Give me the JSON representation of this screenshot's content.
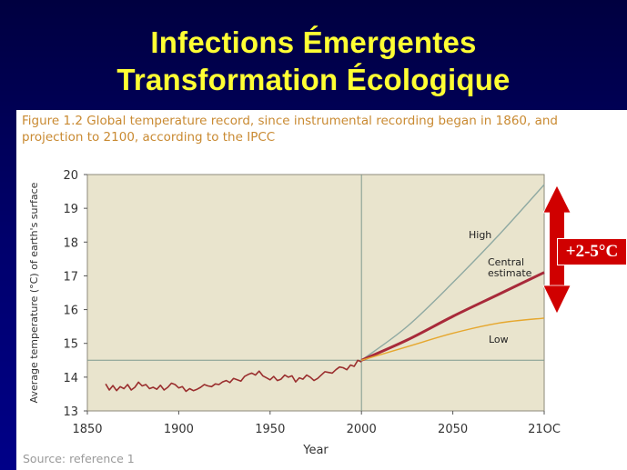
{
  "slide": {
    "title_line1": "Infections Émergentes",
    "title_line2": "Transformation Écologique",
    "callout": "+2-5°C"
  },
  "figure": {
    "caption": "Figure 1.2  Global temperature record, since instrumental recording began in 1860, and projection to 2100, according to the IPCC",
    "source": "Source: reference 1"
  },
  "colors": {
    "plot_bg": "#e9e4cd",
    "observed": "#9a2e2e",
    "high": "#8fa9a2",
    "central": "#a82a3a",
    "low": "#e6a72e",
    "callout": "#d00000",
    "title": "#ffff33"
  },
  "chart_data": {
    "type": "line",
    "xlabel": "Year",
    "ylabel": "Average temperature (°C) of earth's surface",
    "xlim": [
      1850,
      2100
    ],
    "ylim": [
      13,
      20
    ],
    "x_ticks": [
      1850,
      1900,
      1950,
      2000,
      2050,
      2100
    ],
    "x_tick_labels": [
      "1850",
      "1900",
      "1950",
      "2000",
      "2050",
      "21OC"
    ],
    "y_ticks": [
      13,
      14,
      15,
      16,
      17,
      18,
      19,
      20
    ],
    "reference_x": 2000,
    "reference_y": 14.5,
    "grid": false,
    "series": [
      {
        "x": [
          1860,
          1862,
          1864,
          1866,
          1868,
          1870,
          1872,
          1874,
          1876,
          1878,
          1880,
          1882,
          1884,
          1886,
          1888,
          1890,
          1892,
          1894,
          1896,
          1898,
          1900,
          1902,
          1904,
          1906,
          1908,
          1910,
          1912,
          1914,
          1916,
          1918,
          1920,
          1922,
          1924,
          1926,
          1928,
          1930,
          1932,
          1934,
          1936,
          1938,
          1940,
          1942,
          1944,
          1946,
          1948,
          1950,
          1952,
          1954,
          1956,
          1958,
          1960,
          1962,
          1964,
          1966,
          1968,
          1970,
          1972,
          1974,
          1976,
          1978,
          1980,
          1982,
          1984,
          1986,
          1988,
          1990,
          1992,
          1994,
          1996,
          1998,
          2000
        ],
        "y": [
          13.8,
          13.62,
          13.75,
          13.6,
          13.72,
          13.66,
          13.78,
          13.62,
          13.7,
          13.85,
          13.74,
          13.78,
          13.66,
          13.7,
          13.64,
          13.76,
          13.62,
          13.7,
          13.82,
          13.78,
          13.68,
          13.72,
          13.58,
          13.66,
          13.6,
          13.64,
          13.7,
          13.78,
          13.74,
          13.72,
          13.8,
          13.78,
          13.86,
          13.9,
          13.84,
          13.96,
          13.92,
          13.88,
          14.02,
          14.08,
          14.12,
          14.06,
          14.18,
          14.04,
          13.98,
          13.92,
          14.02,
          13.9,
          13.94,
          14.06,
          14.0,
          14.04,
          13.86,
          13.98,
          13.94,
          14.06,
          14.0,
          13.9,
          13.96,
          14.06,
          14.16,
          14.14,
          14.12,
          14.22,
          14.3,
          14.28,
          14.22,
          14.36,
          14.32,
          14.5,
          14.45
        ]
      },
      {
        "name": "High",
        "x": [
          2000,
          2025,
          2050,
          2075,
          2100
        ],
        "y": [
          14.5,
          15.5,
          16.8,
          18.2,
          19.7
        ]
      },
      {
        "name": "Central estimate",
        "x": [
          2000,
          2025,
          2050,
          2075,
          2100
        ],
        "y": [
          14.5,
          15.1,
          15.8,
          16.45,
          17.1
        ]
      },
      {
        "name": "Low",
        "x": [
          2000,
          2025,
          2050,
          2075,
          2100
        ],
        "y": [
          14.5,
          14.9,
          15.3,
          15.6,
          15.75
        ]
      }
    ]
  }
}
